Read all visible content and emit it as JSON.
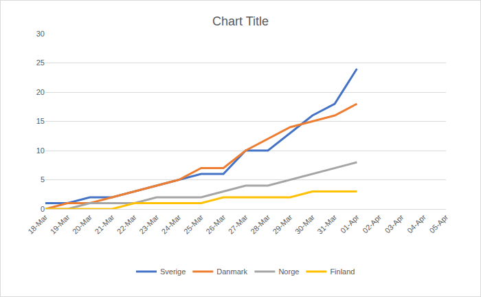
{
  "chart_data": {
    "type": "line",
    "title": "Chart Title",
    "categories": [
      "18-Mar",
      "19-Mar",
      "20-Mar",
      "21-Mar",
      "22-Mar",
      "23-Mar",
      "24-Mar",
      "25-Mar",
      "26-Mar",
      "27-Mar",
      "28-Mar",
      "29-Mar",
      "30-Mar",
      "31-Mar",
      "01-Apr",
      "02-Apr",
      "03-Apr",
      "04-Apr",
      "05-Apr"
    ],
    "series": [
      {
        "name": "Sverige",
        "color": "#4472c4",
        "values": [
          1,
          1,
          2,
          2,
          3,
          4,
          5,
          6,
          6,
          10,
          10,
          13,
          16,
          18,
          24,
          null,
          null,
          null,
          null
        ]
      },
      {
        "name": "Danmark",
        "color": "#ed7d31",
        "values": [
          0,
          1,
          1,
          2,
          3,
          4,
          5,
          7,
          7,
          10,
          12,
          14,
          15,
          16,
          18,
          null,
          null,
          null,
          null
        ]
      },
      {
        "name": "Norge",
        "color": "#a5a5a5",
        "values": [
          0,
          0,
          1,
          1,
          1,
          2,
          2,
          2,
          3,
          4,
          4,
          5,
          6,
          7,
          8,
          null,
          null,
          null,
          null
        ]
      },
      {
        "name": "Finland",
        "color": "#ffc000",
        "values": [
          0,
          0,
          0,
          0,
          1,
          1,
          1,
          1,
          2,
          2,
          2,
          2,
          3,
          3,
          3,
          null,
          null,
          null,
          null
        ]
      }
    ],
    "ylim": [
      0,
      30
    ],
    "yticks": [
      0,
      5,
      10,
      15,
      20,
      25,
      30
    ],
    "grid": true,
    "legend": "bottom"
  }
}
